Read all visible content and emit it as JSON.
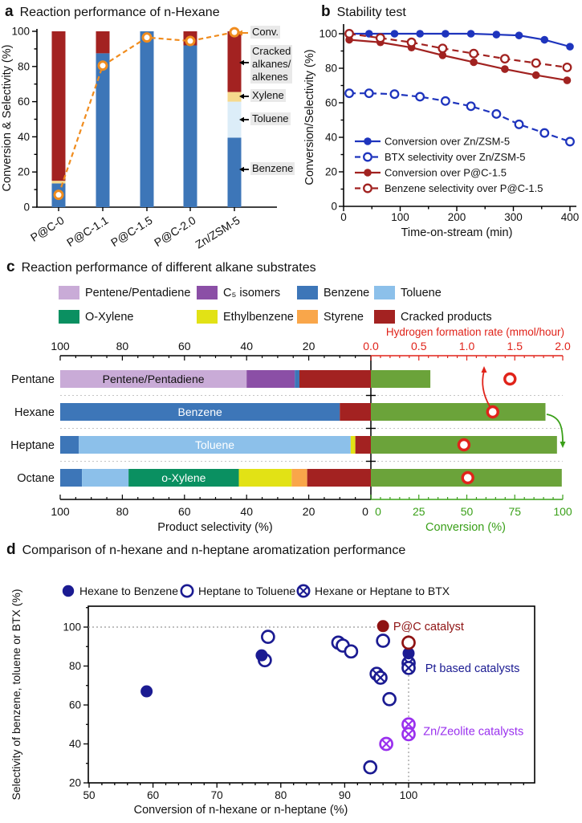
{
  "chart_data": [
    {
      "id": "a",
      "type": "bar",
      "panel_label": "a",
      "title": "Reaction performance of n-Hexane",
      "ylabel": "Conversion & Selectivity (%)",
      "ylim": [
        0,
        100
      ],
      "yticks": [
        0,
        20,
        40,
        60,
        80,
        100
      ],
      "categories": [
        "P@C-0",
        "P@C-1.1",
        "P@C-1.5",
        "P@C-2.0",
        "Zn/ZSM-5"
      ],
      "stack_order": [
        "benzene",
        "toluene",
        "xylene",
        "cracked"
      ],
      "stacks": {
        "benzene": [
          13.5,
          87.5,
          100,
          92,
          39.5
        ],
        "toluene": [
          0,
          0,
          0,
          0,
          20.5
        ],
        "xylene": [
          1.5,
          0,
          0,
          0,
          5.5
        ],
        "cracked": [
          85,
          12.5,
          0,
          8,
          34.5
        ]
      },
      "conversion": [
        7,
        80.5,
        96.5,
        94.5,
        99.5
      ],
      "colors": {
        "benzene": "#3d76b8",
        "toluene": "#dcedf8",
        "xylene": "#f6d98c",
        "cracked": "#a32221",
        "conversion": "#f08c1e"
      },
      "annotations": [
        {
          "lines": [
            "Conv."
          ]
        },
        {
          "lines": [
            "Cracked",
            "alkanes/",
            "alkenes"
          ]
        },
        {
          "lines": [
            "Xylene"
          ]
        },
        {
          "lines": [
            "Toluene"
          ]
        },
        {
          "lines": [
            "Benzene"
          ]
        }
      ]
    },
    {
      "id": "b",
      "type": "line",
      "panel_label": "b",
      "title": "Stability test",
      "xlabel": "Time-on-stream (min)",
      "ylabel": "Conversion/Selectivity (%)",
      "xlim": [
        0,
        411
      ],
      "ylim": [
        0,
        105
      ],
      "xticks": [
        0,
        100,
        200,
        300,
        400
      ],
      "yticks": [
        0,
        20,
        40,
        60,
        80,
        100
      ],
      "series": [
        {
          "name": "Conversion over Zn/ZSM-5",
          "color": "#1e34bd",
          "line": "solid",
          "marker": "filled",
          "x": [
            10,
            45,
            90,
            135,
            180,
            225,
            270,
            310,
            355,
            400
          ],
          "y": [
            100,
            100,
            100,
            100,
            100,
            100,
            99.5,
            99,
            96.5,
            92.5
          ]
        },
        {
          "name": "BTX selectivity over Zn/ZSM-5",
          "color": "#1e34bd",
          "line": "dashed",
          "marker": "open",
          "x": [
            10,
            45,
            90,
            135,
            180,
            225,
            270,
            310,
            355,
            400
          ],
          "y": [
            65.5,
            65.5,
            65,
            63.5,
            61,
            58,
            53.5,
            47.5,
            42.5,
            37.5
          ]
        },
        {
          "name": "Conversion over P@C-1.5",
          "color": "#a12220",
          "line": "solid",
          "marker": "filled",
          "x": [
            10,
            65,
            120,
            175,
            230,
            285,
            340,
            395
          ],
          "y": [
            96.5,
            95,
            92,
            87.5,
            83.5,
            79.5,
            76,
            73
          ]
        },
        {
          "name": "Benzene selectivity over P@C-1.5",
          "color": "#a12220",
          "line": "dashed",
          "marker": "open",
          "x": [
            10,
            65,
            120,
            175,
            230,
            285,
            340,
            395
          ],
          "y": [
            100,
            97.5,
            95,
            91.5,
            88.5,
            85.5,
            83,
            80.5
          ]
        }
      ]
    },
    {
      "id": "c",
      "type": "bar-horizontal",
      "panel_label": "c",
      "title": "Reaction performance of different alkane substrates",
      "legend": [
        {
          "key": "pentene_pentadiene",
          "label": "Pentene/Pentadiene",
          "color": "#c9abd7"
        },
        {
          "key": "c5_isomers",
          "label": "C₅ isomers",
          "color": "#8b4fa6"
        },
        {
          "key": "benzene",
          "label": "Benzene",
          "color": "#3d76b8"
        },
        {
          "key": "toluene",
          "label": "Toluene",
          "color": "#8cc0ea"
        },
        {
          "key": "o_xylene",
          "label": "O-Xylene",
          "color": "#0a9061"
        },
        {
          "key": "ethylbenzene",
          "label": "Ethylbenzene",
          "color": "#e2e215"
        },
        {
          "key": "styrene",
          "label": "Styrene",
          "color": "#f9a64a"
        },
        {
          "key": "cracked",
          "label": "Cracked products",
          "color": "#a32221"
        }
      ],
      "selectivity_axis": {
        "label": "Product selectivity (%)",
        "ticks": [
          100,
          80,
          60,
          40,
          20,
          0
        ],
        "color": "#111111"
      },
      "conversion_axis": {
        "label": "Conversion (%)",
        "ticks": [
          0,
          25,
          50,
          75,
          100
        ],
        "color": "#3aa019"
      },
      "hydrogen_axis": {
        "label": "Hydrogen formation rate (mmol/hour)",
        "ticks": [
          "0.0",
          "0.5",
          "1.0",
          "1.5",
          "2.0"
        ],
        "max": 2.0,
        "color": "#e0231a"
      },
      "rows": [
        {
          "name": "Pentane",
          "segments": [
            {
              "key": "pentene_pentadiene",
              "value": 60
            },
            {
              "key": "c5_isomers",
              "value": 15.5
            },
            {
              "key": "benzene",
              "value": 1.5
            },
            {
              "key": "cracked",
              "value": 23
            }
          ],
          "inbar": {
            "text": "Pentene/Pentadiene",
            "segment": 0,
            "color": "#111111"
          },
          "conversion": 31,
          "h2_rate": 1.45
        },
        {
          "name": "Hexane",
          "segments": [
            {
              "key": "benzene",
              "value": 90
            },
            {
              "key": "cracked",
              "value": 10
            }
          ],
          "inbar": {
            "text": "Benzene",
            "segment": 0,
            "color": "#ffffff"
          },
          "conversion": 91,
          "h2_rate": 1.27
        },
        {
          "name": "Heptane",
          "segments": [
            {
              "key": "benzene",
              "value": 6
            },
            {
              "key": "toluene",
              "value": 87.5
            },
            {
              "key": "ethylbenzene",
              "value": 1.5
            },
            {
              "key": "cracked",
              "value": 5
            }
          ],
          "inbar": {
            "text": "Toluene",
            "segment": 1,
            "color": "#ffffff"
          },
          "conversion": 97,
          "h2_rate": 0.97
        },
        {
          "name": "Octane",
          "segments": [
            {
              "key": "benzene",
              "value": 7
            },
            {
              "key": "toluene",
              "value": 15
            },
            {
              "key": "o_xylene",
              "value": 35.5
            },
            {
              "key": "ethylbenzene",
              "value": 17
            },
            {
              "key": "styrene",
              "value": 5
            },
            {
              "key": "cracked",
              "value": 20.5
            }
          ],
          "inbar": {
            "text": "o-Xylene",
            "segment": 2,
            "color": "#ffffff"
          },
          "conversion": 99.5,
          "h2_rate": 1.01
        }
      ],
      "bar_color": "#6ba33a"
    },
    {
      "id": "d",
      "type": "scatter",
      "panel_label": "d",
      "title": "Comparison of n-hexane and n-heptane aromatization performance",
      "xlabel": "Conversion of n-hexane or n-heptane (%)",
      "ylabel": "Selectivity of benzene, toluene or BTX (%)",
      "xlim": [
        50,
        119
      ],
      "ylim": [
        20,
        110
      ],
      "xticks": [
        50,
        60,
        70,
        80,
        90,
        100
      ],
      "yticks": [
        20,
        40,
        60,
        80,
        100
      ],
      "ref_lines": {
        "h_y": 100,
        "v_x": 100,
        "color": "#999999"
      },
      "series": [
        {
          "name": "Heptane to Toluene",
          "color": "#1b1b92",
          "marker": "open",
          "points": [
            [
              77.5,
              83
            ],
            [
              78,
              95
            ],
            [
              89,
              92
            ],
            [
              89.7,
              90.5
            ],
            [
              91,
              87.5
            ],
            [
              96,
              93
            ],
            [
              97,
              63
            ],
            [
              94,
              28
            ]
          ]
        },
        {
          "name": "Hexane or Heptane to BTX",
          "color": "#1b1b92",
          "marker": "crossed",
          "points": [
            [
              95,
              76
            ],
            [
              95.6,
              74
            ],
            [
              100,
              81.5
            ],
            [
              100,
              79
            ]
          ]
        },
        {
          "name": "Zn/Zeolite catalysts",
          "color": "#9a30ee",
          "marker": "crossed",
          "points": [
            [
              100,
              50
            ],
            [
              100,
              45
            ],
            [
              96.5,
              40
            ]
          ]
        },
        {
          "name": "Hexane to Benzene",
          "color": "#1b1b92",
          "marker": "filled",
          "points": [
            [
              59,
              67
            ],
            [
              77,
              85.5
            ],
            [
              100,
              86.5
            ]
          ]
        },
        {
          "name": "P@C open",
          "color": "#8e1212",
          "marker": "open",
          "points": [
            [
              100,
              92
            ]
          ]
        },
        {
          "name": "P@C catalyst",
          "color": "#8e1212",
          "marker": "filled",
          "points": [
            [
              96,
              100.5
            ]
          ]
        }
      ],
      "legend": [
        {
          "label": "Hexane to Benzene",
          "marker": "filled",
          "color": "#1b1b92"
        },
        {
          "label": "Heptane to Toluene",
          "marker": "open",
          "color": "#1b1b92"
        },
        {
          "label": "Hexane or Heptane to BTX",
          "marker": "crossed",
          "color": "#1b1b92"
        }
      ],
      "annotations": [
        {
          "text": "P@C catalyst",
          "color": "#8e1212",
          "x": 97.6,
          "y": 100.5
        },
        {
          "text": "Pt based catalysts",
          "color": "#1b1b92",
          "x": 102.6,
          "y": 79
        },
        {
          "text": "Zn/Zeolite catalysts",
          "color": "#9a30ee",
          "x": 102.3,
          "y": 46.5
        }
      ]
    }
  ]
}
